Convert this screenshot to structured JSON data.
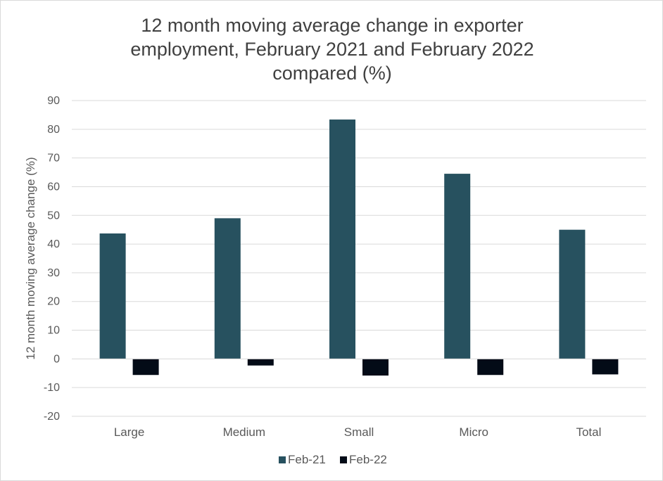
{
  "chart_data": {
    "type": "bar",
    "title_lines": [
      "12 month moving average change in exporter",
      "employment, February 2021 and February 2022",
      "compared (%)"
    ],
    "xlabel": "",
    "ylabel": "12 month moving average change (%)",
    "categories": [
      "Large",
      "Medium",
      "Small",
      "Micro",
      "Total"
    ],
    "series": [
      {
        "name": "Feb-21",
        "color": "#27515f",
        "values": [
          43.7,
          49.0,
          83.4,
          64.5,
          45.0
        ]
      },
      {
        "name": "Feb-22",
        "color": "#030b17",
        "values": [
          -5.6,
          -2.3,
          -5.8,
          -5.6,
          -5.4
        ]
      }
    ],
    "ylim": [
      -20,
      90
    ],
    "yticks": [
      "90",
      "80",
      "70",
      "60",
      "50",
      "40",
      "30",
      "20",
      "10",
      "0",
      "-10",
      "-20"
    ],
    "grid": true,
    "legend_position": "bottom"
  }
}
